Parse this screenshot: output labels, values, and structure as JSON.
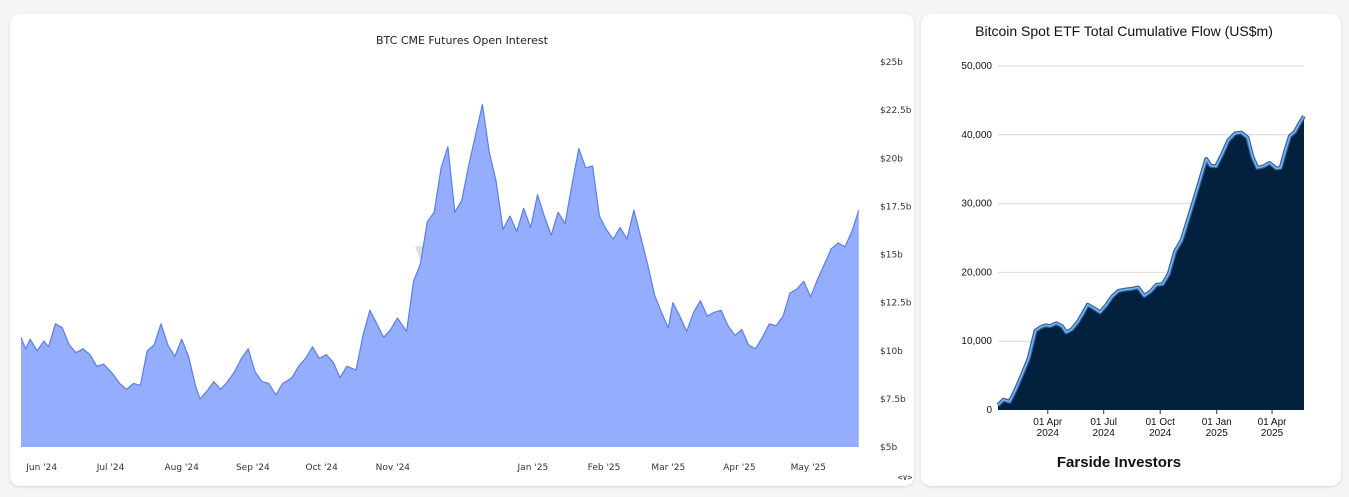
{
  "chart_data": [
    {
      "type": "area",
      "title": "BTC CME Futures Open Interest",
      "xlabel": "",
      "ylabel": "",
      "watermark": "velo",
      "axis_control": "<∨>",
      "y_axis_position": "right",
      "ylim": [
        5,
        25
      ],
      "y_ticks": [
        {
          "value": 25,
          "label": "$25b"
        },
        {
          "value": 22.5,
          "label": "$22.5b"
        },
        {
          "value": 20,
          "label": "$20b"
        },
        {
          "value": 17.5,
          "label": "$17.5b"
        },
        {
          "value": 15,
          "label": "$15b"
        },
        {
          "value": 12.5,
          "label": "$12.5b"
        },
        {
          "value": 10,
          "label": "$10b"
        },
        {
          "value": 7.5,
          "label": "$7.5b"
        },
        {
          "value": 5,
          "label": "$5b"
        }
      ],
      "x_range": [
        "2024-05-23",
        "2025-05-27"
      ],
      "x_ticks": [
        {
          "date": "2024-06-01",
          "label": "Jun '24"
        },
        {
          "date": "2024-07-01",
          "label": "Jul '24"
        },
        {
          "date": "2024-08-01",
          "label": "Aug '24"
        },
        {
          "date": "2024-09-01",
          "label": "Sep '24"
        },
        {
          "date": "2024-10-01",
          "label": "Oct '24"
        },
        {
          "date": "2024-11-01",
          "label": "Nov '24"
        },
        {
          "date": "2025-01-01",
          "label": "Jan '25"
        },
        {
          "date": "2025-02-01",
          "label": "Feb '25"
        },
        {
          "date": "2025-03-01",
          "label": "Mar '25"
        },
        {
          "date": "2025-04-01",
          "label": "Apr '25"
        },
        {
          "date": "2025-05-01",
          "label": "May '25"
        }
      ],
      "colors": {
        "fill": "#94adfc",
        "line": "#5b7fe6"
      },
      "series": [
        {
          "values": [
            [
              "2024-05-23",
              10.7
            ],
            [
              "2024-05-25",
              10.1
            ],
            [
              "2024-05-27",
              10.6
            ],
            [
              "2024-05-30",
              10.0
            ],
            [
              "2024-06-02",
              10.5
            ],
            [
              "2024-06-04",
              10.2
            ],
            [
              "2024-06-07",
              11.4
            ],
            [
              "2024-06-10",
              11.2
            ],
            [
              "2024-06-13",
              10.3
            ],
            [
              "2024-06-16",
              9.9
            ],
            [
              "2024-06-19",
              10.1
            ],
            [
              "2024-06-22",
              9.8
            ],
            [
              "2024-06-25",
              9.2
            ],
            [
              "2024-06-28",
              9.3
            ],
            [
              "2024-07-02",
              8.8
            ],
            [
              "2024-07-05",
              8.3
            ],
            [
              "2024-07-08",
              8.0
            ],
            [
              "2024-07-11",
              8.3
            ],
            [
              "2024-07-14",
              8.2
            ],
            [
              "2024-07-17",
              10.0
            ],
            [
              "2024-07-20",
              10.3
            ],
            [
              "2024-07-23",
              11.4
            ],
            [
              "2024-07-26",
              10.3
            ],
            [
              "2024-07-29",
              9.7
            ],
            [
              "2024-08-01",
              10.6
            ],
            [
              "2024-08-04",
              9.7
            ],
            [
              "2024-08-07",
              8.2
            ],
            [
              "2024-08-09",
              7.5
            ],
            [
              "2024-08-12",
              7.9
            ],
            [
              "2024-08-15",
              8.4
            ],
            [
              "2024-08-18",
              8.0
            ],
            [
              "2024-08-21",
              8.4
            ],
            [
              "2024-08-24",
              8.9
            ],
            [
              "2024-08-27",
              9.6
            ],
            [
              "2024-08-30",
              10.1
            ],
            [
              "2024-09-02",
              8.9
            ],
            [
              "2024-09-05",
              8.4
            ],
            [
              "2024-09-08",
              8.3
            ],
            [
              "2024-09-11",
              7.7
            ],
            [
              "2024-09-14",
              8.3
            ],
            [
              "2024-09-18",
              8.6
            ],
            [
              "2024-09-21",
              9.2
            ],
            [
              "2024-09-24",
              9.6
            ],
            [
              "2024-09-27",
              10.2
            ],
            [
              "2024-09-30",
              9.6
            ],
            [
              "2024-10-03",
              9.8
            ],
            [
              "2024-10-06",
              9.4
            ],
            [
              "2024-10-09",
              8.6
            ],
            [
              "2024-10-12",
              9.2
            ],
            [
              "2024-10-16",
              9.0
            ],
            [
              "2024-10-19",
              10.8
            ],
            [
              "2024-10-22",
              12.1
            ],
            [
              "2024-10-25",
              11.4
            ],
            [
              "2024-10-28",
              10.7
            ],
            [
              "2024-10-31",
              11.1
            ],
            [
              "2024-11-03",
              11.7
            ],
            [
              "2024-11-07",
              11.0
            ],
            [
              "2024-11-10",
              13.6
            ],
            [
              "2024-11-13",
              14.5
            ],
            [
              "2024-11-16",
              16.7
            ],
            [
              "2024-11-19",
              17.2
            ],
            [
              "2024-11-22",
              19.5
            ],
            [
              "2024-11-25",
              20.6
            ],
            [
              "2024-11-28",
              17.2
            ],
            [
              "2024-12-01",
              17.8
            ],
            [
              "2024-12-04",
              19.6
            ],
            [
              "2024-12-07",
              21.2
            ],
            [
              "2024-12-10",
              22.8
            ],
            [
              "2024-12-13",
              20.3
            ],
            [
              "2024-12-16",
              18.8
            ],
            [
              "2024-12-19",
              16.3
            ],
            [
              "2024-12-22",
              17.0
            ],
            [
              "2024-12-25",
              16.2
            ],
            [
              "2024-12-28",
              17.4
            ],
            [
              "2024-12-31",
              16.4
            ],
            [
              "2025-01-03",
              18.1
            ],
            [
              "2025-01-06",
              17.0
            ],
            [
              "2025-01-09",
              16.0
            ],
            [
              "2025-01-12",
              17.2
            ],
            [
              "2025-01-15",
              16.6
            ],
            [
              "2025-01-18",
              18.6
            ],
            [
              "2025-01-21",
              20.5
            ],
            [
              "2025-01-24",
              19.5
            ],
            [
              "2025-01-27",
              19.6
            ],
            [
              "2025-01-30",
              17.0
            ],
            [
              "2025-02-02",
              16.3
            ],
            [
              "2025-02-05",
              15.8
            ],
            [
              "2025-02-08",
              16.4
            ],
            [
              "2025-02-11",
              15.8
            ],
            [
              "2025-02-14",
              17.3
            ],
            [
              "2025-02-17",
              15.9
            ],
            [
              "2025-02-20",
              14.5
            ],
            [
              "2025-02-23",
              12.9
            ],
            [
              "2025-02-26",
              12.0
            ],
            [
              "2025-03-01",
              11.2
            ],
            [
              "2025-03-03",
              12.5
            ],
            [
              "2025-03-06",
              11.8
            ],
            [
              "2025-03-09",
              11.0
            ],
            [
              "2025-03-12",
              12.0
            ],
            [
              "2025-03-15",
              12.6
            ],
            [
              "2025-03-18",
              11.8
            ],
            [
              "2025-03-21",
              12.0
            ],
            [
              "2025-03-24",
              12.1
            ],
            [
              "2025-03-27",
              11.3
            ],
            [
              "2025-03-30",
              10.8
            ],
            [
              "2025-04-02",
              11.1
            ],
            [
              "2025-04-05",
              10.3
            ],
            [
              "2025-04-08",
              10.1
            ],
            [
              "2025-04-11",
              10.7
            ],
            [
              "2025-04-14",
              11.4
            ],
            [
              "2025-04-17",
              11.3
            ],
            [
              "2025-04-20",
              11.8
            ],
            [
              "2025-04-23",
              13.0
            ],
            [
              "2025-04-26",
              13.2
            ],
            [
              "2025-04-29",
              13.6
            ],
            [
              "2025-05-02",
              12.8
            ],
            [
              "2025-05-05",
              13.7
            ],
            [
              "2025-05-08",
              14.5
            ],
            [
              "2025-05-11",
              15.3
            ],
            [
              "2025-05-14",
              15.6
            ],
            [
              "2025-05-17",
              15.4
            ],
            [
              "2025-05-20",
              16.2
            ],
            [
              "2025-05-23",
              17.3
            ]
          ]
        }
      ]
    },
    {
      "type": "area",
      "title": "Bitcoin Spot ETF Total Cumulative Flow (US$m)",
      "xlabel": "",
      "ylabel": "",
      "source": "Farside Investors",
      "ylim": [
        0,
        50000
      ],
      "y_ticks": [
        {
          "value": 50000,
          "label": "50,000"
        },
        {
          "value": 40000,
          "label": "40,000"
        },
        {
          "value": 30000,
          "label": "30,000"
        },
        {
          "value": 20000,
          "label": "20,000"
        },
        {
          "value": 10000,
          "label": "10,000"
        },
        {
          "value": 0,
          "label": "0"
        }
      ],
      "x_range": [
        "2024-01-11",
        "2025-05-23"
      ],
      "x_ticks": [
        {
          "date": "2024-04-01",
          "label": [
            "01 Apr",
            "2024"
          ]
        },
        {
          "date": "2024-07-01",
          "label": [
            "01 Jul",
            "2024"
          ]
        },
        {
          "date": "2024-10-01",
          "label": [
            "01 Oct",
            "2024"
          ]
        },
        {
          "date": "2025-01-01",
          "label": [
            "01 Jan",
            "2025"
          ]
        },
        {
          "date": "2025-04-01",
          "label": [
            "01 Apr",
            "2025"
          ]
        }
      ],
      "grid": "horizontal",
      "colors": {
        "fill": "#03213f",
        "line": "#7fb3e3"
      },
      "series": [
        {
          "values": [
            [
              "2024-01-11",
              700
            ],
            [
              "2024-01-20",
              1500
            ],
            [
              "2024-01-30",
              1200
            ],
            [
              "2024-02-08",
              2800
            ],
            [
              "2024-02-20",
              5300
            ],
            [
              "2024-03-01",
              7500
            ],
            [
              "2024-03-12",
              11500
            ],
            [
              "2024-03-20",
              12000
            ],
            [
              "2024-03-28",
              12300
            ],
            [
              "2024-04-05",
              12200
            ],
            [
              "2024-04-15",
              12600
            ],
            [
              "2024-04-24",
              12200
            ],
            [
              "2024-05-01",
              11300
            ],
            [
              "2024-05-10",
              11700
            ],
            [
              "2024-05-20",
              12800
            ],
            [
              "2024-05-28",
              14000
            ],
            [
              "2024-06-05",
              15300
            ],
            [
              "2024-06-15",
              14800
            ],
            [
              "2024-06-25",
              14200
            ],
            [
              "2024-07-05",
              15200
            ],
            [
              "2024-07-15",
              16500
            ],
            [
              "2024-07-25",
              17300
            ],
            [
              "2024-08-05",
              17500
            ],
            [
              "2024-08-15",
              17600
            ],
            [
              "2024-08-26",
              17800
            ],
            [
              "2024-09-05",
              16600
            ],
            [
              "2024-09-15",
              17200
            ],
            [
              "2024-09-25",
              18200
            ],
            [
              "2024-10-05",
              18300
            ],
            [
              "2024-10-15",
              19800
            ],
            [
              "2024-10-25",
              23000
            ],
            [
              "2024-11-05",
              24700
            ],
            [
              "2024-11-15",
              27600
            ],
            [
              "2024-11-25",
              30500
            ],
            [
              "2024-12-05",
              33500
            ],
            [
              "2024-12-15",
              36500
            ],
            [
              "2024-12-22",
              35500
            ],
            [
              "2024-12-31",
              35400
            ],
            [
              "2025-01-10",
              37200
            ],
            [
              "2025-01-20",
              39200
            ],
            [
              "2025-01-31",
              40200
            ],
            [
              "2025-02-10",
              40300
            ],
            [
              "2025-02-20",
              39600
            ],
            [
              "2025-02-28",
              36800
            ],
            [
              "2025-03-08",
              35200
            ],
            [
              "2025-03-18",
              35400
            ],
            [
              "2025-03-28",
              35900
            ],
            [
              "2025-04-08",
              35100
            ],
            [
              "2025-04-15",
              35200
            ],
            [
              "2025-04-22",
              37500
            ],
            [
              "2025-04-30",
              39800
            ],
            [
              "2025-05-08",
              40400
            ],
            [
              "2025-05-16",
              41700
            ],
            [
              "2025-05-23",
              42700
            ]
          ]
        }
      ]
    }
  ]
}
